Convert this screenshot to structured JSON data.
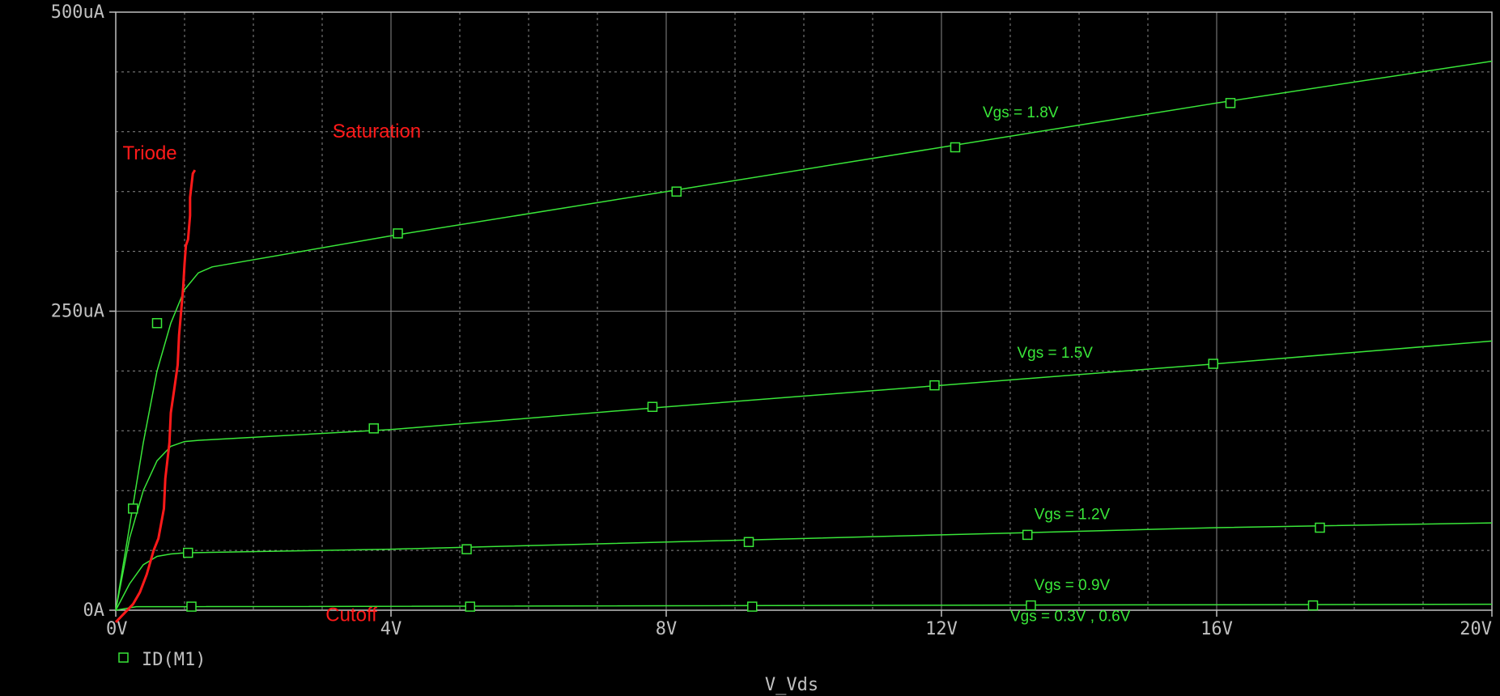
{
  "chart_data": {
    "type": "line",
    "xlabel": "V_Vds",
    "x_ticks": [
      {
        "value": 0,
        "label": "0V"
      },
      {
        "value": 4,
        "label": "4V"
      },
      {
        "value": 8,
        "label": "8V"
      },
      {
        "value": 12,
        "label": "12V"
      },
      {
        "value": 16,
        "label": "16V"
      },
      {
        "value": 20,
        "label": "20V"
      }
    ],
    "y_ticks": [
      {
        "value": 0,
        "label": "0A"
      },
      {
        "value": 250,
        "label": "250uA"
      },
      {
        "value": 500,
        "label": "500uA"
      }
    ],
    "xlim": [
      0,
      20
    ],
    "ylim": [
      0,
      500
    ],
    "y_unit": "uA",
    "grid": true,
    "background": "#000000",
    "grid_color": "#8a8a8a",
    "legend": {
      "label": "ID(M1)",
      "placement": "bottom-left"
    },
    "series": [
      {
        "name": "ID(M1)",
        "color": "#39e639",
        "points": [
          [
            0,
            0
          ],
          [
            0.2,
            70
          ],
          [
            0.4,
            140
          ],
          [
            0.6,
            200
          ],
          [
            0.8,
            240
          ],
          [
            1.0,
            268
          ],
          [
            1.2,
            282
          ],
          [
            1.4,
            287
          ],
          [
            4.0,
            313
          ],
          [
            8.0,
            350
          ],
          [
            12.0,
            387
          ],
          [
            16.0,
            424
          ],
          [
            20.0,
            459
          ]
        ]
      },
      {
        "name": "ID(M1)",
        "color": "#39e639",
        "points": [
          [
            0,
            0
          ],
          [
            0.2,
            60
          ],
          [
            0.4,
            100
          ],
          [
            0.6,
            125
          ],
          [
            0.8,
            137
          ],
          [
            1.0,
            141
          ],
          [
            1.2,
            142
          ],
          [
            4.0,
            151
          ],
          [
            8.0,
            170
          ],
          [
            12.0,
            188
          ],
          [
            16.0,
            206
          ],
          [
            20.0,
            225
          ]
        ]
      },
      {
        "name": "ID(M1)",
        "color": "#39e639",
        "points": [
          [
            0,
            0
          ],
          [
            0.2,
            22
          ],
          [
            0.4,
            38
          ],
          [
            0.6,
            45
          ],
          [
            0.8,
            47
          ],
          [
            1.0,
            48
          ],
          [
            4.0,
            51
          ],
          [
            8.0,
            57
          ],
          [
            12.0,
            63
          ],
          [
            16.0,
            69
          ],
          [
            20.0,
            73
          ]
        ]
      },
      {
        "name": "ID(M1)",
        "color": "#39e639",
        "points": [
          [
            0,
            0
          ],
          [
            0.3,
            3
          ],
          [
            1.0,
            3
          ],
          [
            20.0,
            5
          ]
        ]
      }
    ],
    "markers": [
      [
        [
          0.6,
          240
        ],
        [
          4.1,
          315
        ],
        [
          8.15,
          350
        ],
        [
          12.2,
          387
        ],
        [
          16.2,
          424
        ]
      ],
      [
        [
          0.25,
          85
        ],
        [
          3.75,
          152
        ],
        [
          7.8,
          170
        ],
        [
          11.9,
          188
        ],
        [
          15.95,
          206
        ]
      ],
      [
        [
          1.05,
          48
        ],
        [
          5.1,
          51
        ],
        [
          9.2,
          57
        ],
        [
          13.25,
          63
        ],
        [
          17.5,
          69
        ]
      ],
      [
        [
          1.1,
          3
        ],
        [
          5.15,
          3
        ],
        [
          9.25,
          3
        ],
        [
          13.3,
          4
        ],
        [
          17.4,
          4
        ]
      ]
    ],
    "boundary_curve": {
      "color": "#ff1a1a",
      "points": [
        [
          0,
          -10
        ],
        [
          0.25,
          5
        ],
        [
          0.35,
          15
        ],
        [
          0.45,
          30
        ],
        [
          0.55,
          50
        ],
        [
          0.62,
          60
        ],
        [
          0.7,
          85
        ],
        [
          0.72,
          110
        ],
        [
          0.78,
          140
        ],
        [
          0.8,
          165
        ],
        [
          0.85,
          185
        ],
        [
          0.9,
          205
        ],
        [
          0.92,
          230
        ],
        [
          0.95,
          250
        ],
        [
          0.98,
          270
        ],
        [
          1.0,
          290
        ],
        [
          1.02,
          305
        ],
        [
          1.05,
          310
        ],
        [
          1.08,
          330
        ],
        [
          1.08,
          345
        ],
        [
          1.12,
          365
        ],
        [
          1.15,
          368
        ]
      ]
    },
    "annotations": [
      {
        "text": "Vgs = 1.8V",
        "x": 12.6,
        "y": 412,
        "kind": "curve"
      },
      {
        "text": "Vgs = 1.5V",
        "x": 13.1,
        "y": 211,
        "kind": "curve"
      },
      {
        "text": "Vgs = 1.2V",
        "x": 13.35,
        "y": 76,
        "kind": "curve"
      },
      {
        "text": "Vgs = 0.9V",
        "x": 13.35,
        "y": 17,
        "kind": "curve"
      },
      {
        "text": "Vgs = 0.3V , 0.6V",
        "x": 13.0,
        "y": -9,
        "kind": "curve"
      },
      {
        "text": "Triode",
        "x": 0.1,
        "y": 377,
        "kind": "region"
      },
      {
        "text": "Saturation",
        "x": 3.15,
        "y": 395,
        "kind": "region"
      },
      {
        "text": "Cutoff",
        "x": 3.05,
        "y": -9,
        "kind": "region"
      }
    ]
  }
}
